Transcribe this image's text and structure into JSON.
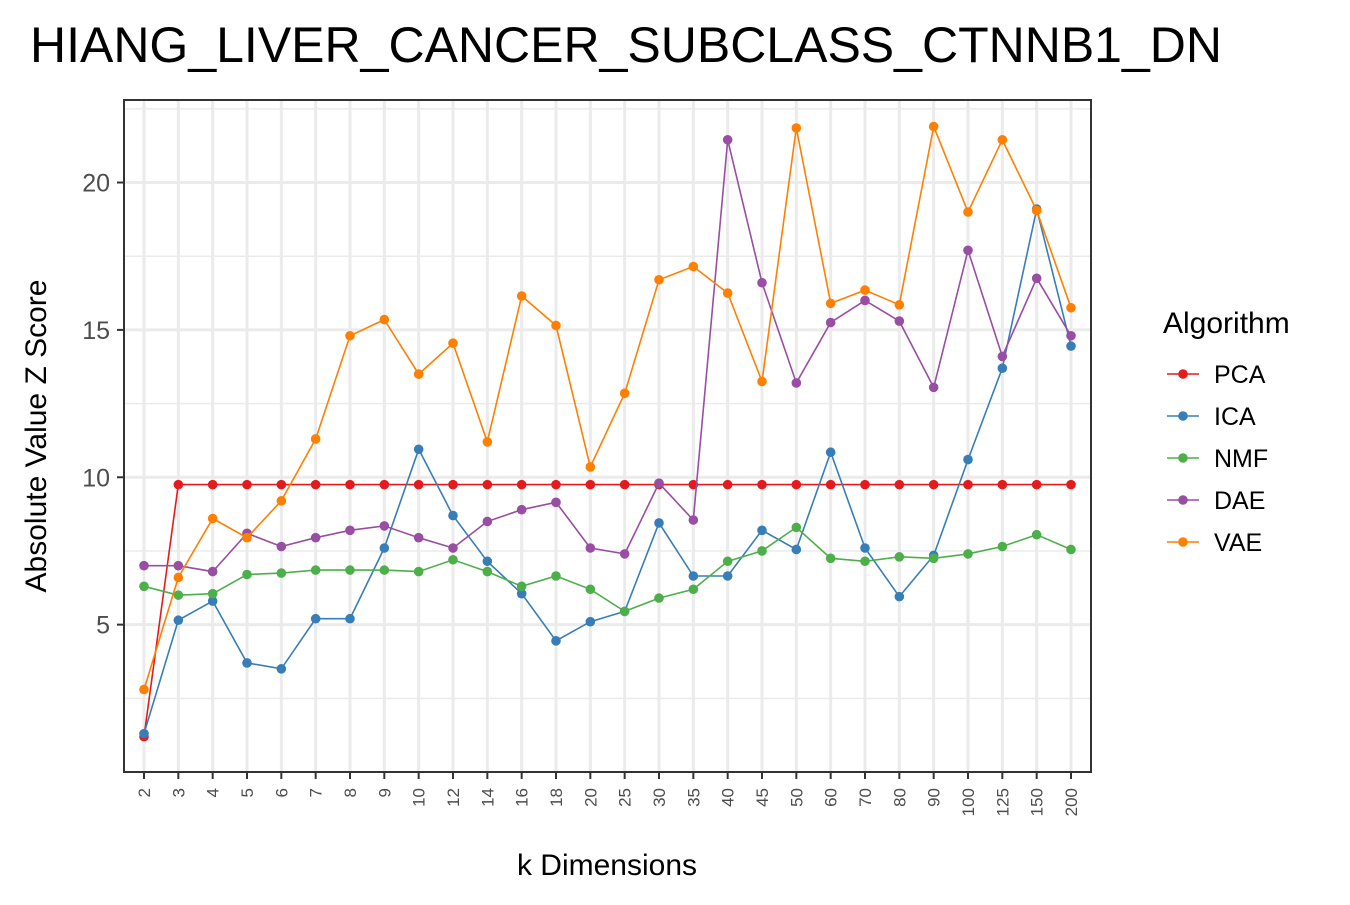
{
  "chart_data": {
    "type": "line",
    "title": "HIANG_LIVER_CANCER_SUBCLASS_CTNNB1_DN",
    "xlabel": "k Dimensions",
    "ylabel": "Absolute Value Z Score",
    "categories": [
      "2",
      "3",
      "4",
      "5",
      "6",
      "7",
      "8",
      "9",
      "10",
      "12",
      "14",
      "16",
      "18",
      "20",
      "25",
      "30",
      "35",
      "40",
      "45",
      "50",
      "60",
      "70",
      "80",
      "90",
      "100",
      "125",
      "150",
      "200"
    ],
    "y_ticks": [
      5,
      10,
      15,
      20
    ],
    "ylim": [
      0.0,
      22.8
    ],
    "grid": true,
    "legend": {
      "title": "Algorithm",
      "position": "right"
    },
    "series": [
      {
        "name": "PCA",
        "color": "#e41a1c",
        "values": [
          1.2,
          9.75,
          9.75,
          9.75,
          9.75,
          9.75,
          9.75,
          9.75,
          9.75,
          9.75,
          9.75,
          9.75,
          9.75,
          9.75,
          9.75,
          9.75,
          9.75,
          9.75,
          9.75,
          9.75,
          9.75,
          9.75,
          9.75,
          9.75,
          9.75,
          9.75,
          9.75,
          9.75
        ]
      },
      {
        "name": "ICA",
        "color": "#377eb8",
        "values": [
          1.3,
          5.15,
          5.8,
          3.7,
          3.5,
          5.2,
          5.2,
          7.6,
          10.95,
          8.7,
          7.15,
          6.05,
          4.45,
          5.1,
          5.45,
          8.45,
          6.65,
          6.65,
          8.2,
          7.55,
          10.85,
          7.6,
          5.95,
          7.35,
          10.6,
          13.7,
          19.1,
          14.45
        ]
      },
      {
        "name": "NMF",
        "color": "#4daf4a",
        "values": [
          6.3,
          6.0,
          6.05,
          6.7,
          6.75,
          6.85,
          6.85,
          6.85,
          6.8,
          7.2,
          6.8,
          6.3,
          6.65,
          6.2,
          5.45,
          5.9,
          6.2,
          7.15,
          7.5,
          8.3,
          7.25,
          7.15,
          7.3,
          7.25,
          7.4,
          7.65,
          8.05,
          7.55
        ]
      },
      {
        "name": "DAE",
        "color": "#984ea3",
        "values": [
          7.0,
          7.0,
          6.8,
          8.1,
          7.65,
          7.95,
          8.2,
          8.35,
          7.95,
          7.6,
          8.5,
          8.9,
          9.15,
          7.6,
          7.4,
          9.8,
          8.55,
          21.45,
          16.6,
          13.2,
          15.25,
          16.0,
          15.3,
          13.05,
          17.7,
          14.1,
          16.75,
          14.8
        ]
      },
      {
        "name": "VAE",
        "color": "#ff7f00",
        "values": [
          2.8,
          6.6,
          8.6,
          7.95,
          9.2,
          11.3,
          14.8,
          15.35,
          13.5,
          14.55,
          11.2,
          16.15,
          15.15,
          10.35,
          12.85,
          16.7,
          17.15,
          16.25,
          13.25,
          21.85,
          15.9,
          16.35,
          15.85,
          21.9,
          19.0,
          21.45,
          19.05,
          15.75
        ]
      }
    ]
  }
}
